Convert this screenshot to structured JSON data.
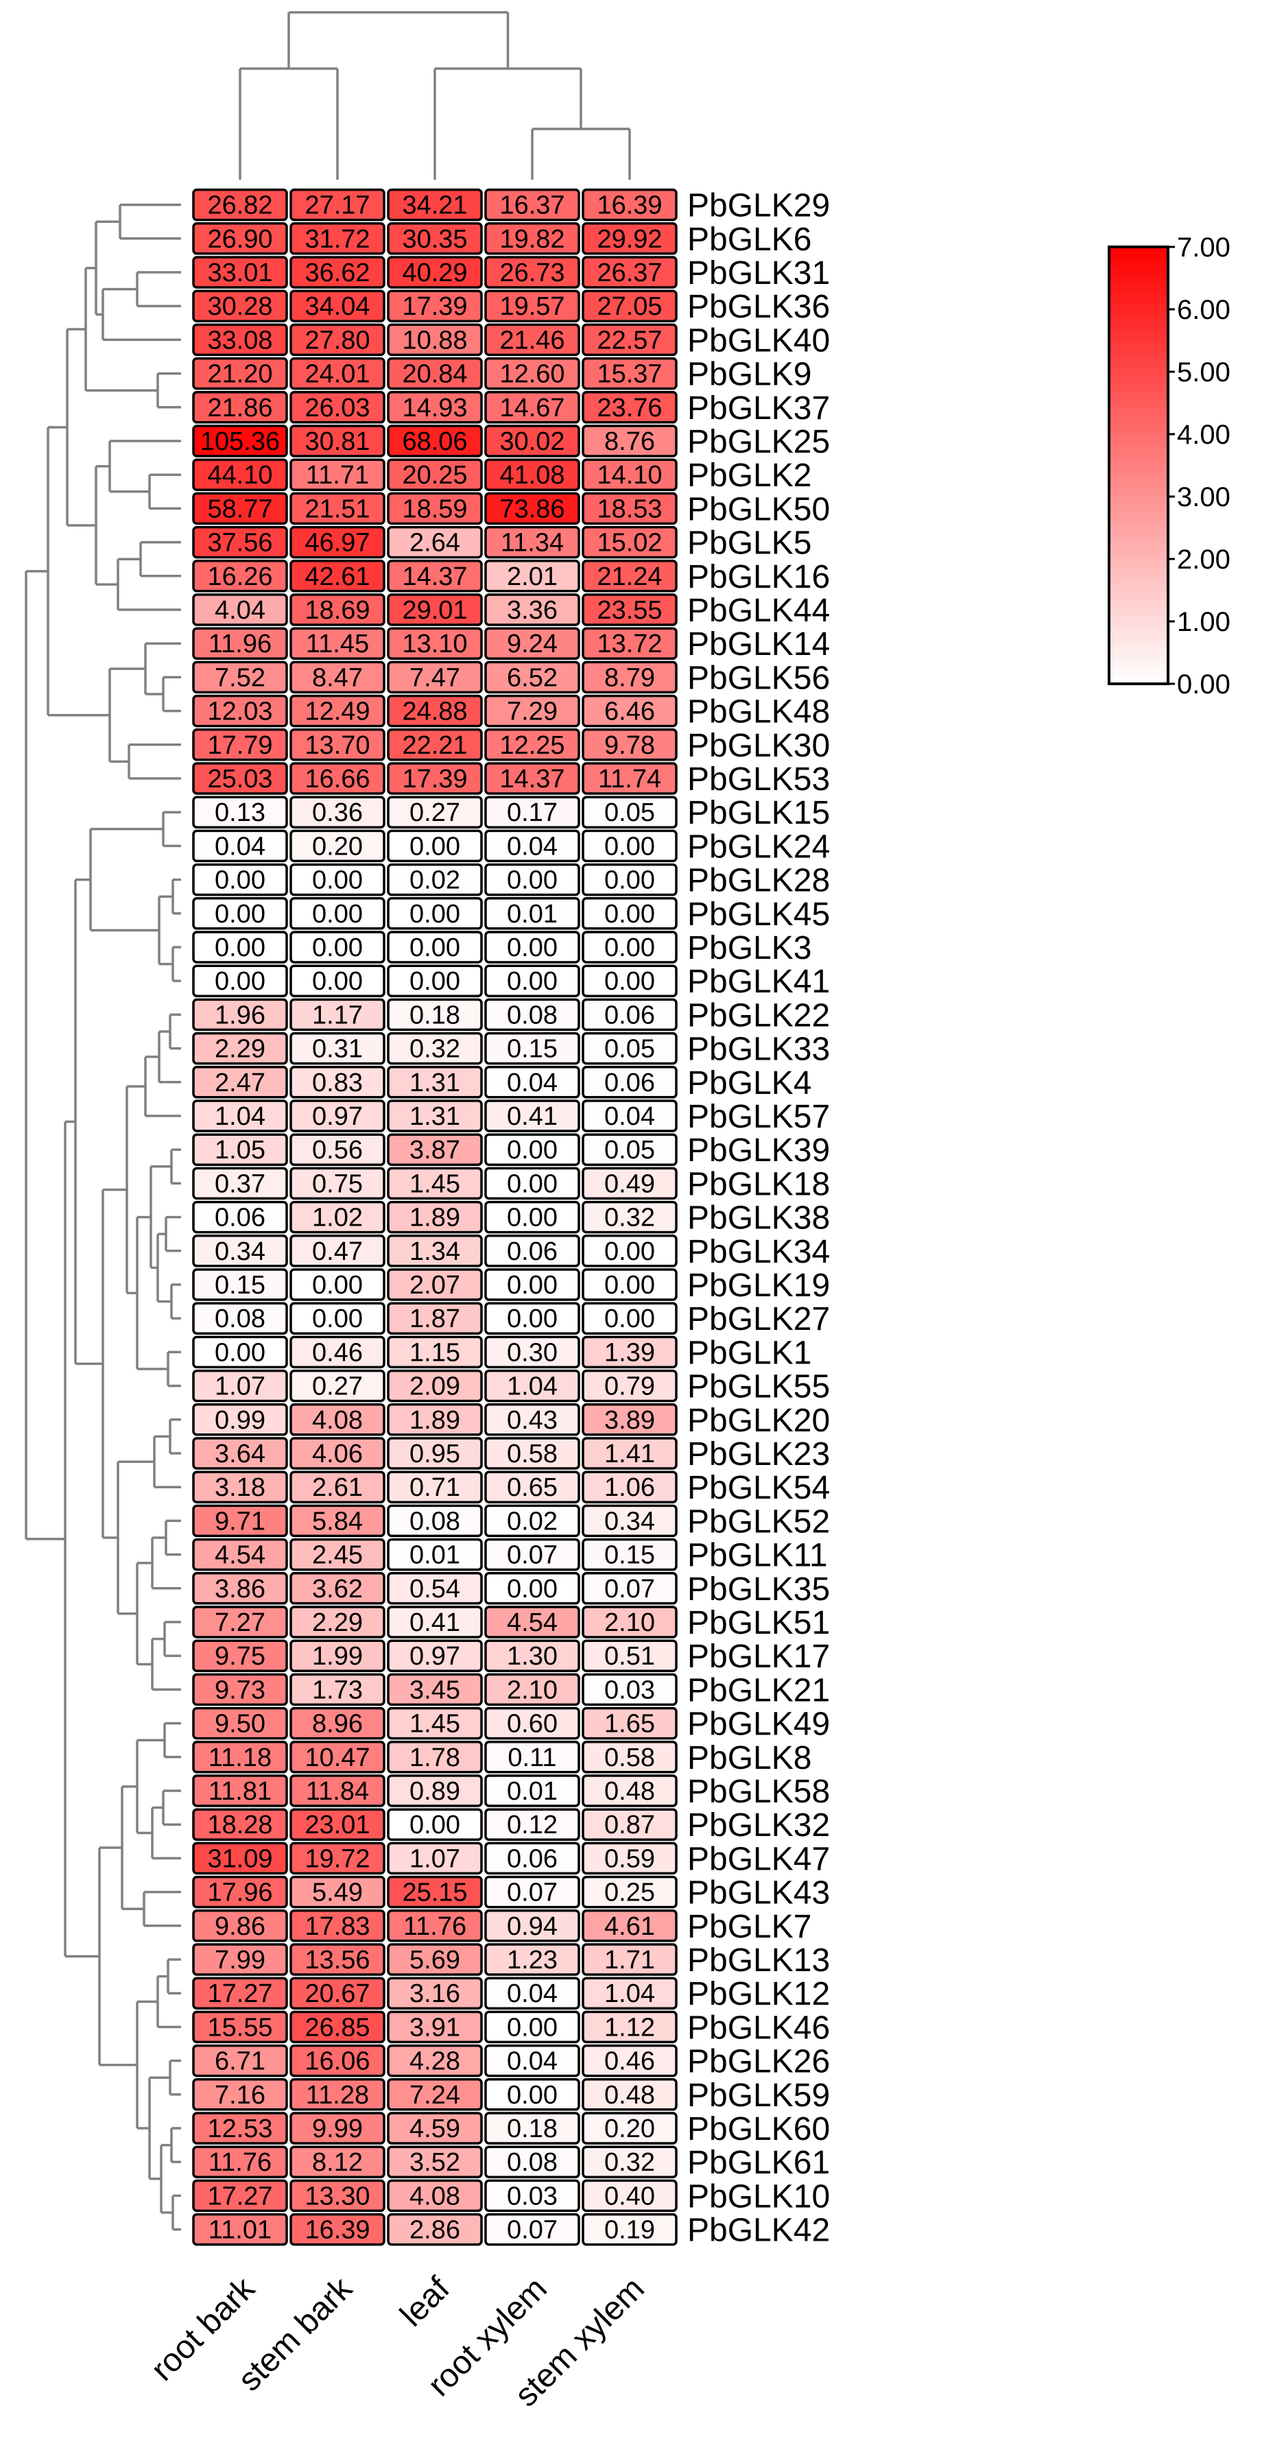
{
  "chart_data": {
    "type": "heatmap",
    "title": "",
    "columns": [
      "root bark",
      "stem bark",
      "leaf",
      "root xylem",
      "stem xylem"
    ],
    "rows": [
      "PbGLK29",
      "PbGLK6",
      "PbGLK31",
      "PbGLK36",
      "PbGLK40",
      "PbGLK9",
      "PbGLK37",
      "PbGLK25",
      "PbGLK2",
      "PbGLK50",
      "PbGLK5",
      "PbGLK16",
      "PbGLK44",
      "PbGLK14",
      "PbGLK56",
      "PbGLK48",
      "PbGLK30",
      "PbGLK53",
      "PbGLK15",
      "PbGLK24",
      "PbGLK28",
      "PbGLK45",
      "PbGLK3",
      "PbGLK41",
      "PbGLK22",
      "PbGLK33",
      "PbGLK4",
      "PbGLK57",
      "PbGLK39",
      "PbGLK18",
      "PbGLK38",
      "PbGLK34",
      "PbGLK19",
      "PbGLK27",
      "PbGLK1",
      "PbGLK55",
      "PbGLK20",
      "PbGLK23",
      "PbGLK54",
      "PbGLK52",
      "PbGLK11",
      "PbGLK35",
      "PbGLK51",
      "PbGLK17",
      "PbGLK21",
      "PbGLK49",
      "PbGLK8",
      "PbGLK58",
      "PbGLK32",
      "PbGLK47",
      "PbGLK43",
      "PbGLK7",
      "PbGLK13",
      "PbGLK12",
      "PbGLK46",
      "PbGLK26",
      "PbGLK59",
      "PbGLK60",
      "PbGLK61",
      "PbGLK10",
      "PbGLK42"
    ],
    "cells": [
      [
        "26.82",
        "27.17",
        "34.21",
        "16.37",
        "16.39"
      ],
      [
        "26.90",
        "31.72",
        "30.35",
        "19.82",
        "29.92"
      ],
      [
        "33.01",
        "36.62",
        "40.29",
        "26.73",
        "26.37"
      ],
      [
        "30.28",
        "34.04",
        "17.39",
        "19.57",
        "27.05"
      ],
      [
        "33.08",
        "27.80",
        "10.88",
        "21.46",
        "22.57"
      ],
      [
        "21.20",
        "24.01",
        "20.84",
        "12.60",
        "15.37"
      ],
      [
        "21.86",
        "26.03",
        "14.93",
        "14.67",
        "23.76"
      ],
      [
        "105.36",
        "30.81",
        "68.06",
        "30.02",
        "8.76"
      ],
      [
        "44.10",
        "11.71",
        "20.25",
        "41.08",
        "14.10"
      ],
      [
        "58.77",
        "21.51",
        "18.59",
        "73.86",
        "18.53"
      ],
      [
        "37.56",
        "46.97",
        "2.64",
        "11.34",
        "15.02"
      ],
      [
        "16.26",
        "42.61",
        "14.37",
        "2.01",
        "21.24"
      ],
      [
        "4.04",
        "18.69",
        "29.01",
        "3.36",
        "23.55"
      ],
      [
        "11.96",
        "11.45",
        "13.10",
        "9.24",
        "13.72"
      ],
      [
        "7.52",
        "8.47",
        "7.47",
        "6.52",
        "8.79"
      ],
      [
        "12.03",
        "12.49",
        "24.88",
        "7.29",
        "6.46"
      ],
      [
        "17.79",
        "13.70",
        "22.21",
        "12.25",
        "9.78"
      ],
      [
        "25.03",
        "16.66",
        "17.39",
        "14.37",
        "11.74"
      ],
      [
        "0.13",
        "0.36",
        "0.27",
        "0.17",
        "0.05"
      ],
      [
        "0.04",
        "0.20",
        "0.00",
        "0.04",
        "0.00"
      ],
      [
        "0.00",
        "0.00",
        "0.02",
        "0.00",
        "0.00"
      ],
      [
        "0.00",
        "0.00",
        "0.00",
        "0.01",
        "0.00"
      ],
      [
        "0.00",
        "0.00",
        "0.00",
        "0.00",
        "0.00"
      ],
      [
        "0.00",
        "0.00",
        "0.00",
        "0.00",
        "0.00"
      ],
      [
        "1.96",
        "1.17",
        "0.18",
        "0.08",
        "0.06"
      ],
      [
        "2.29",
        "0.31",
        "0.32",
        "0.15",
        "0.05"
      ],
      [
        "2.47",
        "0.83",
        "1.31",
        "0.04",
        "0.06"
      ],
      [
        "1.04",
        "0.97",
        "1.31",
        "0.41",
        "0.04"
      ],
      [
        "1.05",
        "0.56",
        "3.87",
        "0.00",
        "0.05"
      ],
      [
        "0.37",
        "0.75",
        "1.45",
        "0.00",
        "0.49"
      ],
      [
        "0.06",
        "1.02",
        "1.89",
        "0.00",
        "0.32"
      ],
      [
        "0.34",
        "0.47",
        "1.34",
        "0.06",
        "0.00"
      ],
      [
        "0.15",
        "0.00",
        "2.07",
        "0.00",
        "0.00"
      ],
      [
        "0.08",
        "0.00",
        "1.87",
        "0.00",
        "0.00"
      ],
      [
        "0.00",
        "0.46",
        "1.15",
        "0.30",
        "1.39"
      ],
      [
        "1.07",
        "0.27",
        "2.09",
        "1.04",
        "0.79"
      ],
      [
        "0.99",
        "4.08",
        "1.89",
        "0.43",
        "3.89"
      ],
      [
        "3.64",
        "4.06",
        "0.95",
        "0.58",
        "1.41"
      ],
      [
        "3.18",
        "2.61",
        "0.71",
        "0.65",
        "1.06"
      ],
      [
        "9.71",
        "5.84",
        "0.08",
        "0.02",
        "0.34"
      ],
      [
        "4.54",
        "2.45",
        "0.01",
        "0.07",
        "0.15"
      ],
      [
        "3.86",
        "3.62",
        "0.54",
        "0.00",
        "0.07"
      ],
      [
        "7.27",
        "2.29",
        "0.41",
        "4.54",
        "2.10"
      ],
      [
        "9.75",
        "1.99",
        "0.97",
        "1.30",
        "0.51"
      ],
      [
        "9.73",
        "1.73",
        "3.45",
        "2.10",
        "0.03"
      ],
      [
        "9.50",
        "8.96",
        "1.45",
        "0.60",
        "1.65"
      ],
      [
        "11.18",
        "10.47",
        "1.78",
        "0.11",
        "0.58"
      ],
      [
        "11.81",
        "11.84",
        "0.89",
        "0.01",
        "0.48"
      ],
      [
        "18.28",
        "23.01",
        "0.00",
        "0.12",
        "0.87"
      ],
      [
        "31.09",
        "19.72",
        "1.07",
        "0.06",
        "0.59"
      ],
      [
        "17.96",
        "5.49",
        "25.15",
        "0.07",
        "0.25"
      ],
      [
        "9.86",
        "17.83",
        "11.76",
        "0.94",
        "4.61"
      ],
      [
        "7.99",
        "13.56",
        "5.69",
        "1.23",
        "1.71"
      ],
      [
        "17.27",
        "20.67",
        "3.16",
        "0.04",
        "1.04"
      ],
      [
        "15.55",
        "26.85",
        "3.91",
        "0.00",
        "1.12"
      ],
      [
        "6.71",
        "16.06",
        "4.28",
        "0.04",
        "0.46"
      ],
      [
        "7.16",
        "11.28",
        "7.24",
        "0.00",
        "0.48"
      ],
      [
        "12.53",
        "9.99",
        "4.59",
        "0.18",
        "0.20"
      ],
      [
        "11.76",
        "8.12",
        "3.52",
        "0.08",
        "0.32"
      ],
      [
        "17.27",
        "13.30",
        "4.08",
        "0.03",
        "0.40"
      ],
      [
        "11.01",
        "16.39",
        "2.86",
        "0.07",
        "0.19"
      ]
    ],
    "color_scale": {
      "transform": "log2(value + 1)",
      "min": 0.0,
      "max": 7.0,
      "low_color": "#ffffff",
      "high_color": "#ff0000",
      "ticks": [
        "0.00",
        "1.00",
        "2.00",
        "3.00",
        "4.00",
        "5.00",
        "6.00",
        "7.00"
      ]
    },
    "dendrogram": {
      "rows": true,
      "columns": true,
      "line_color": "#808080"
    }
  }
}
